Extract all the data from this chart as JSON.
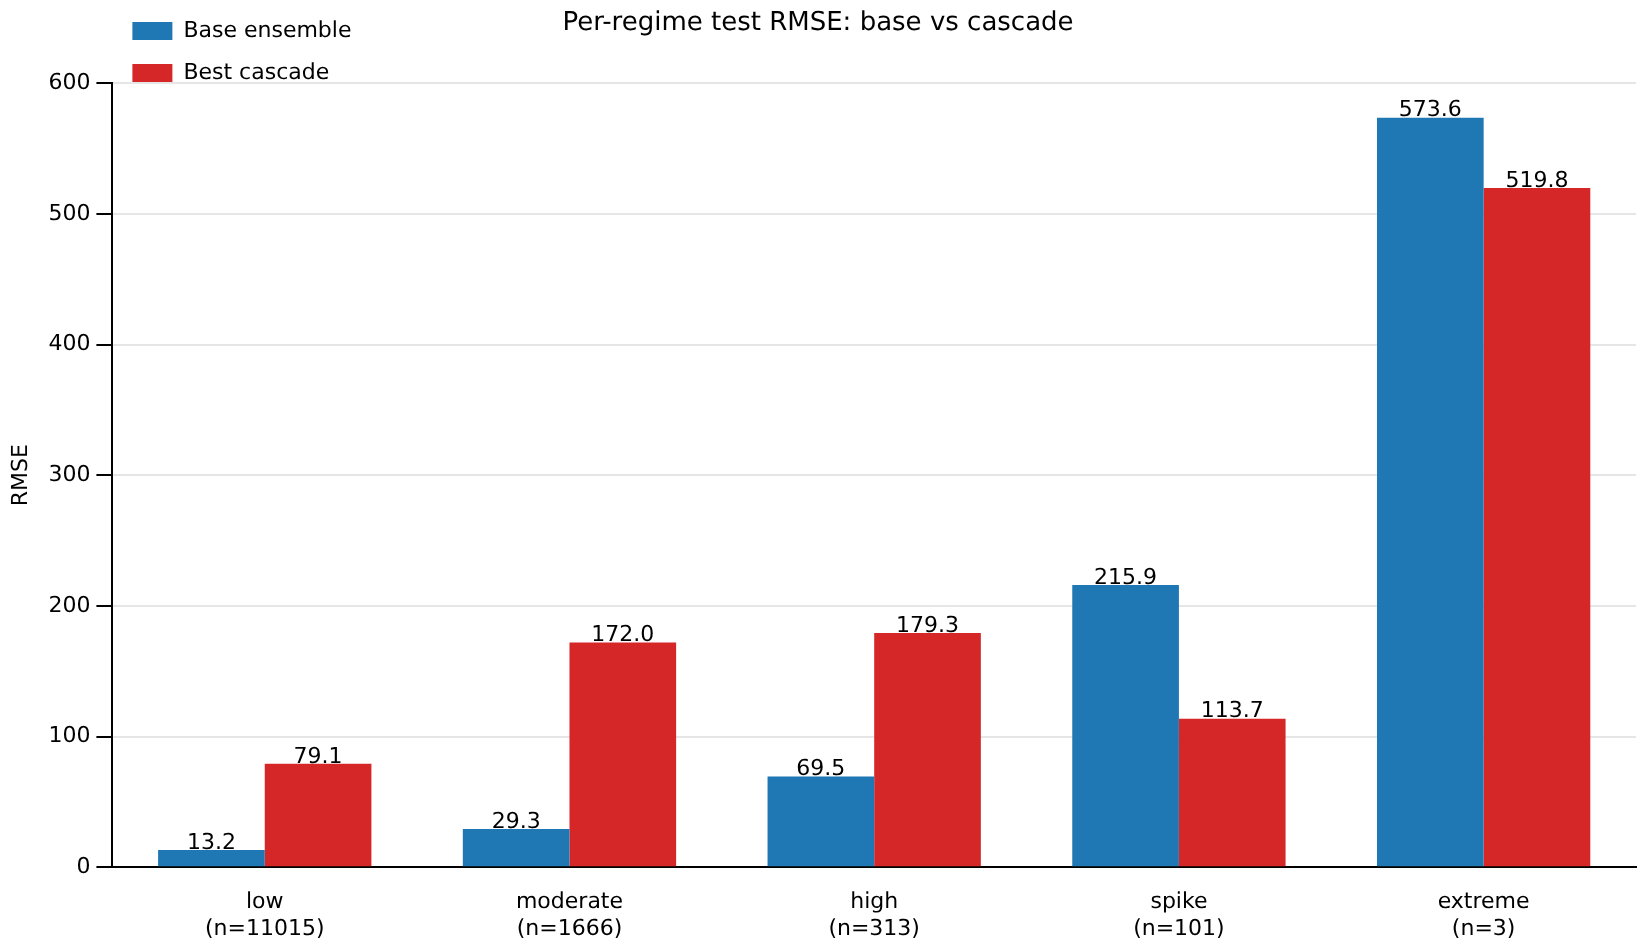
{
  "chart_data": {
    "type": "bar",
    "title": "Per-regime test RMSE: base vs cascade",
    "ylabel": "RMSE",
    "categories": [
      "low\n(n=11015)",
      "moderate\n(n=1666)",
      "high\n(n=313)",
      "spike\n(n=101)",
      "extreme\n(n=3)"
    ],
    "series": [
      {
        "name": "Base ensemble",
        "color": "#1f77b4",
        "values": [
          13.2,
          29.3,
          69.5,
          215.9,
          573.6
        ],
        "value_labels": [
          "13.2",
          "29.3",
          "69.5",
          "215.9",
          "573.6"
        ]
      },
      {
        "name": "Best cascade",
        "color": "#d62728",
        "values": [
          79.1,
          172.0,
          179.3,
          113.7,
          519.8
        ],
        "value_labels": [
          "79.1",
          "172.0",
          "179.3",
          "113.7",
          "519.8"
        ]
      }
    ],
    "ylim": [
      0,
      600
    ],
    "yticks": [
      0,
      100,
      200,
      300,
      400,
      500,
      600
    ],
    "grid": "y",
    "legend": "top left"
  }
}
